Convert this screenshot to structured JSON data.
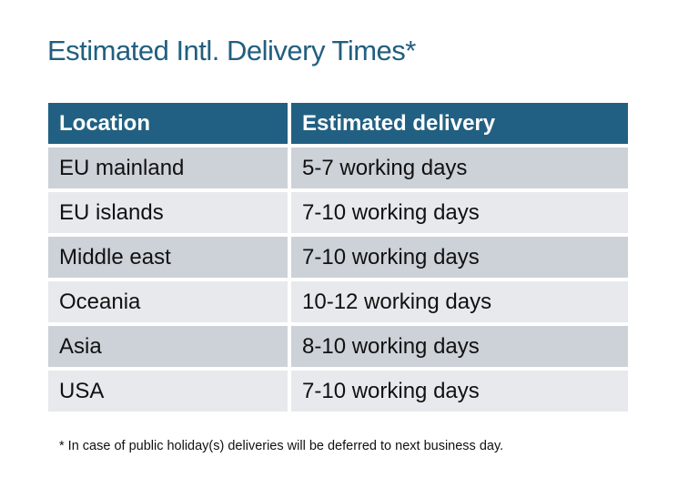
{
  "title": "Estimated Intl. Delivery Times*",
  "table": {
    "headers": [
      "Location",
      "Estimated delivery"
    ],
    "rows": [
      [
        "EU mainland",
        "5-7 working days"
      ],
      [
        "EU islands",
        "7-10 working days"
      ],
      [
        "Middle east",
        "7-10 working days"
      ],
      [
        "Oceania",
        "10-12 working days"
      ],
      [
        "Asia",
        "8-10 working days"
      ],
      [
        "USA",
        "7-10 working days"
      ]
    ]
  },
  "footnote": "* In case of public holiday(s) deliveries will be deferred to next business day.",
  "colors": {
    "header": "#216082",
    "row_dark": "#cdd1d8",
    "row_light": "#e7e9ec",
    "title": "#215f80"
  }
}
